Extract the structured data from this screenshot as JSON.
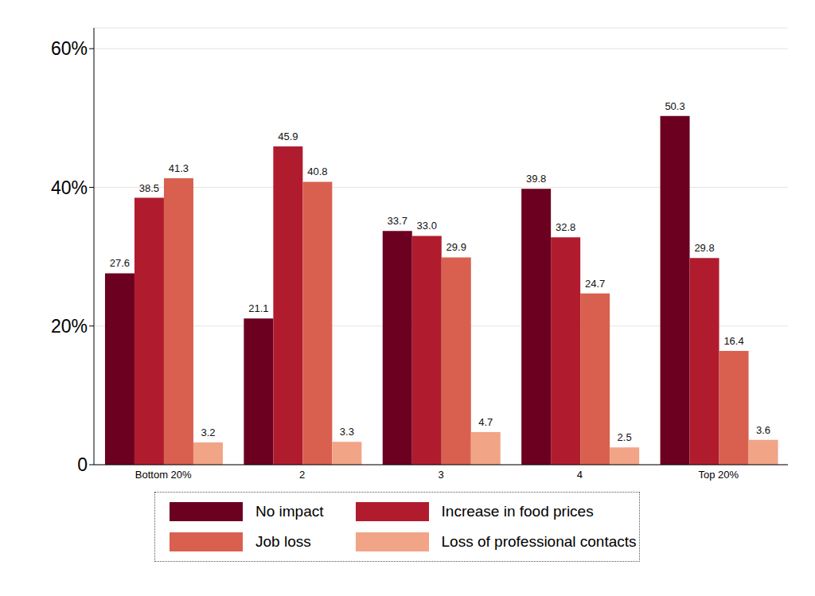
{
  "chart_data": {
    "type": "bar",
    "categories": [
      "Bottom 20%",
      "2",
      "3",
      "4",
      "Top 20%"
    ],
    "series": [
      {
        "name": "No impact",
        "color": "#6b0020",
        "values": [
          27.6,
          21.1,
          33.7,
          39.8,
          50.3
        ],
        "value_labels": [
          "27.6",
          "21.1",
          "33.7",
          "39.8",
          "50.3"
        ]
      },
      {
        "name": "Increase in food prices",
        "color": "#b01c2e",
        "values": [
          38.5,
          45.9,
          33.0,
          32.8,
          29.8
        ],
        "value_labels": [
          "38.5",
          "45.9",
          "33.0",
          "32.8",
          "29.8"
        ]
      },
      {
        "name": "Job loss",
        "color": "#d9604f",
        "values": [
          41.3,
          40.8,
          29.9,
          24.7,
          16.4
        ],
        "value_labels": [
          "41.3",
          "40.8",
          "29.9",
          "24.7",
          "16.4"
        ]
      },
      {
        "name": "Loss of professional contacts",
        "color": "#f2a487",
        "values": [
          3.2,
          3.3,
          4.7,
          2.5,
          3.6
        ],
        "value_labels": [
          "3.2",
          "3.3",
          "4.7",
          "2.5",
          "3.6"
        ]
      }
    ],
    "ylim": [
      0,
      63
    ],
    "yticks": [
      0,
      {
        "value": 20,
        "label": "20%"
      },
      {
        "value": 40,
        "label": "40%"
      },
      {
        "value": 60,
        "label": "60%"
      }
    ],
    "grid": true,
    "legend": "bottom",
    "data_labels": true
  }
}
